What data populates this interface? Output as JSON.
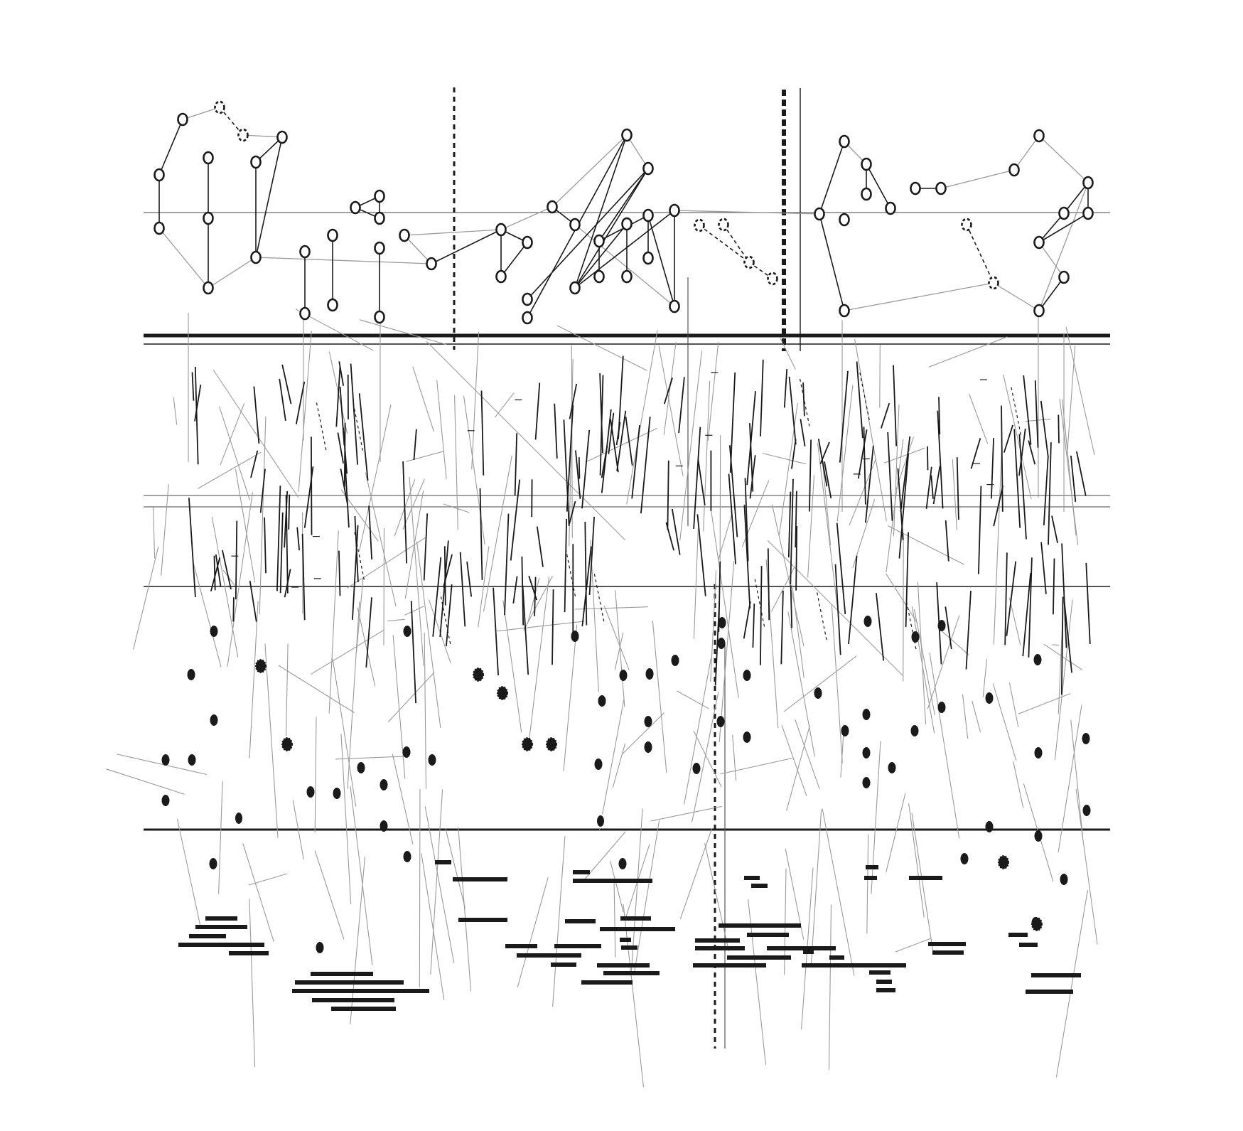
{
  "artwork": {
    "kind": "graphic-notation-score",
    "text": "",
    "colors": {
      "ink": "#1a1a1a",
      "grey_line": "#9a9a9a",
      "background": "#ffffff"
    },
    "regions": [
      "upper-node-network",
      "middle-stroke-field",
      "lower-dot-field",
      "bottom-bar-clusters"
    ]
  }
}
